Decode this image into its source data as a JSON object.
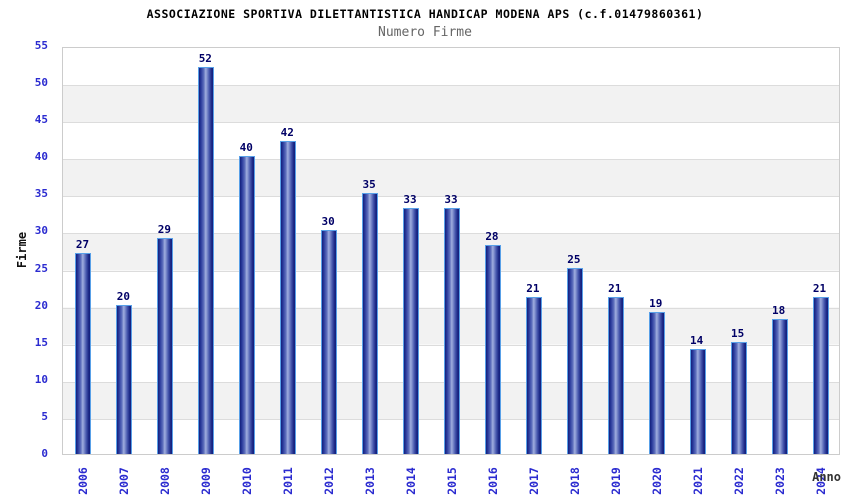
{
  "title": "ASSOCIAZIONE SPORTIVA DILETTANTISTICA HANDICAP MODENA APS (c.f.01479860361)",
  "subtitle": "Numero Firme",
  "chart_data": {
    "type": "bar",
    "title": "ASSOCIAZIONE SPORTIVA DILETTANTISTICA HANDICAP MODENA APS (c.f.01479860361)",
    "subtitle": "Numero Firme",
    "categories": [
      "2006",
      "2007",
      "2008",
      "2009",
      "2010",
      "2011",
      "2012",
      "2013",
      "2014",
      "2015",
      "2016",
      "2017",
      "2018",
      "2019",
      "2020",
      "2021",
      "2022",
      "2023",
      "2024"
    ],
    "values": [
      27,
      20,
      29,
      52,
      40,
      42,
      30,
      35,
      33,
      33,
      28,
      21,
      25,
      21,
      19,
      14,
      15,
      18,
      21
    ],
    "xlabel": "Anno",
    "ylabel": "Firme",
    "ylim": [
      0,
      55
    ],
    "ytick_step": 5,
    "grid": true,
    "legend_position": "none",
    "band_alternating": true,
    "colors": {
      "bar_edge_gradient": "#131f7c",
      "bar_center_gradient": "#9fadde",
      "bar_border": "#58a0e8",
      "value_label": "#000066",
      "tick_label": "#2b2bd0",
      "band_gray": "#f2f2f2",
      "gridline": "#dcdcdc",
      "plot_border": "#cccccc",
      "title": "#000000",
      "subtitle": "#666666"
    }
  }
}
